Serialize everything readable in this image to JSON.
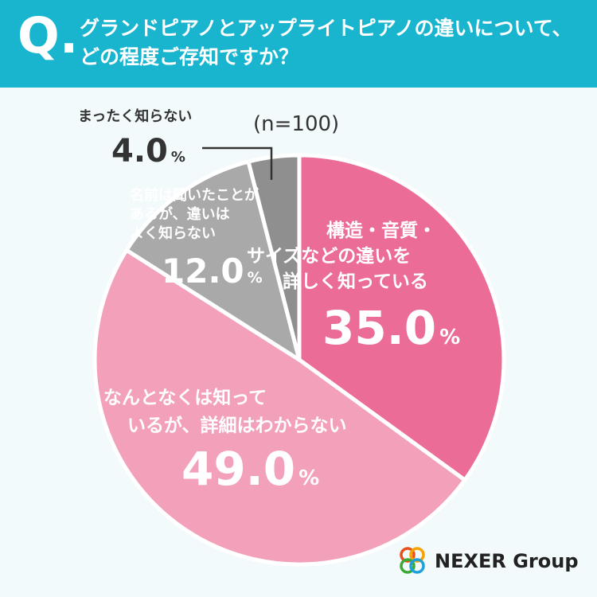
{
  "question": {
    "mark": "Q.",
    "line1": "グランドピアノとアップライトピアノの違いについて、",
    "line2": "どの程度ご存知ですか？"
  },
  "sample": "(n=100)",
  "chart_data": {
    "type": "pie",
    "title": "",
    "categories": [
      "構造・音質・サイズなどの違いを詳しく知っている",
      "なんとなくは知っているが、詳細はわからない",
      "名前は聞いたことがあるが、違いはよく知らない",
      "まったく知らない"
    ],
    "label_lines": [
      [
        "構造・音質・",
        "サイズなどの違いを",
        "詳しく知っている"
      ],
      [
        "なんとなくは知って",
        "いるが、詳細はわからない"
      ],
      [
        "名前は聞いたことが",
        "あるが、違いは",
        "よく知らない"
      ],
      [
        "まったく知らない"
      ]
    ],
    "values": [
      35.0,
      49.0,
      12.0,
      4.0
    ],
    "value_labels": [
      "35.0",
      "49.0",
      "12.0",
      "4.0"
    ],
    "unit": "%",
    "colors": [
      "#ec6c98",
      "#f3a1bb",
      "#a9a9a9",
      "#8f8f8f"
    ],
    "start": "12 o'clock",
    "direction": "clockwise"
  },
  "brand": {
    "name": "NEXER Group",
    "logo_colors": [
      "#e94e1b",
      "#f5a300",
      "#3aaa35",
      "#1ea0d8"
    ]
  }
}
